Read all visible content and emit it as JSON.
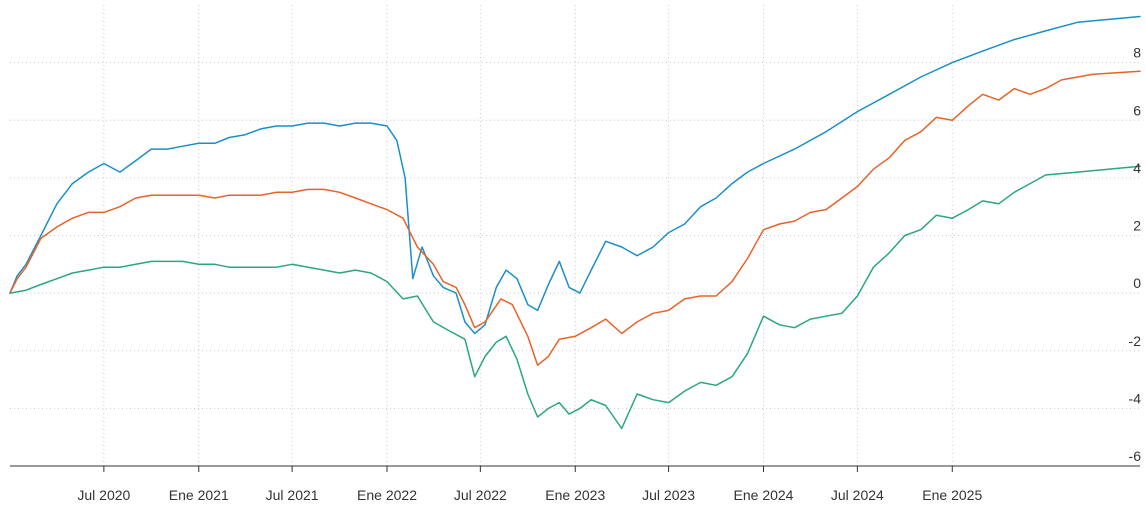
{
  "chart_data": {
    "type": "line",
    "grid": true,
    "legend": "none",
    "y_axis_position": "right",
    "xlim": [
      "2020-01-01",
      "2025-12-31"
    ],
    "ylim": [
      -6,
      10
    ],
    "x_ticks": [
      {
        "date": "2020-07-01",
        "label": "Jul 2020"
      },
      {
        "date": "2021-01-01",
        "label": "Ene 2021"
      },
      {
        "date": "2021-07-01",
        "label": "Jul 2021"
      },
      {
        "date": "2022-01-01",
        "label": "Ene 2022"
      },
      {
        "date": "2022-07-01",
        "label": "Jul 2022"
      },
      {
        "date": "2023-01-01",
        "label": "Ene 2023"
      },
      {
        "date": "2023-07-01",
        "label": "Jul 2023"
      },
      {
        "date": "2024-01-01",
        "label": "Ene 2024"
      },
      {
        "date": "2024-07-01",
        "label": "Jul 2024"
      },
      {
        "date": "2025-01-01",
        "label": "Ene 2025"
      }
    ],
    "y_ticks": [
      {
        "value": 8,
        "label": "8"
      },
      {
        "value": 6,
        "label": "6"
      },
      {
        "value": 4,
        "label": "4"
      },
      {
        "value": 2,
        "label": "2"
      },
      {
        "value": 0,
        "label": "0"
      },
      {
        "value": -2,
        "label": "-2"
      },
      {
        "value": -4,
        "label": "-4"
      },
      {
        "value": -6,
        "label": "-6"
      }
    ],
    "series": [
      {
        "color": "#1a8fc9",
        "points": [
          [
            "2020-01-01",
            0.0
          ],
          [
            "2020-01-15",
            0.6
          ],
          [
            "2020-02-01",
            1.0
          ],
          [
            "2020-03-01",
            2.0
          ],
          [
            "2020-04-01",
            3.1
          ],
          [
            "2020-05-01",
            3.8
          ],
          [
            "2020-06-01",
            4.2
          ],
          [
            "2020-07-01",
            4.5
          ],
          [
            "2020-08-01",
            4.2
          ],
          [
            "2020-09-01",
            4.6
          ],
          [
            "2020-10-01",
            5.0
          ],
          [
            "2020-11-01",
            5.0
          ],
          [
            "2020-12-01",
            5.1
          ],
          [
            "2021-01-01",
            5.2
          ],
          [
            "2021-02-01",
            5.2
          ],
          [
            "2021-03-01",
            5.4
          ],
          [
            "2021-04-01",
            5.5
          ],
          [
            "2021-05-01",
            5.7
          ],
          [
            "2021-06-01",
            5.8
          ],
          [
            "2021-07-01",
            5.8
          ],
          [
            "2021-08-01",
            5.9
          ],
          [
            "2021-09-01",
            5.9
          ],
          [
            "2021-10-01",
            5.8
          ],
          [
            "2021-11-01",
            5.9
          ],
          [
            "2021-12-01",
            5.9
          ],
          [
            "2022-01-01",
            5.8
          ],
          [
            "2022-01-20",
            5.3
          ],
          [
            "2022-02-05",
            4.0
          ],
          [
            "2022-02-20",
            0.5
          ],
          [
            "2022-03-10",
            1.6
          ],
          [
            "2022-04-01",
            0.6
          ],
          [
            "2022-04-20",
            0.2
          ],
          [
            "2022-05-15",
            0.0
          ],
          [
            "2022-06-01",
            -1.0
          ],
          [
            "2022-06-20",
            -1.4
          ],
          [
            "2022-07-10",
            -1.1
          ],
          [
            "2022-08-01",
            0.2
          ],
          [
            "2022-08-20",
            0.8
          ],
          [
            "2022-09-10",
            0.5
          ],
          [
            "2022-10-01",
            -0.4
          ],
          [
            "2022-10-20",
            -0.6
          ],
          [
            "2022-11-10",
            0.3
          ],
          [
            "2022-12-01",
            1.1
          ],
          [
            "2022-12-20",
            0.2
          ],
          [
            "2023-01-10",
            0.0
          ],
          [
            "2023-02-01",
            0.8
          ],
          [
            "2023-03-01",
            1.8
          ],
          [
            "2023-04-01",
            1.6
          ],
          [
            "2023-05-01",
            1.3
          ],
          [
            "2023-06-01",
            1.6
          ],
          [
            "2023-07-01",
            2.1
          ],
          [
            "2023-08-01",
            2.4
          ],
          [
            "2023-09-01",
            3.0
          ],
          [
            "2023-10-01",
            3.3
          ],
          [
            "2023-11-01",
            3.8
          ],
          [
            "2023-12-01",
            4.2
          ],
          [
            "2024-01-01",
            4.5
          ],
          [
            "2024-03-01",
            5.0
          ],
          [
            "2024-05-01",
            5.6
          ],
          [
            "2024-07-01",
            6.3
          ],
          [
            "2024-09-01",
            6.9
          ],
          [
            "2024-11-01",
            7.5
          ],
          [
            "2025-01-01",
            8.0
          ],
          [
            "2025-03-01",
            8.4
          ],
          [
            "2025-05-01",
            8.8
          ],
          [
            "2025-07-01",
            9.1
          ],
          [
            "2025-09-01",
            9.4
          ],
          [
            "2025-12-31",
            9.6
          ]
        ]
      },
      {
        "color": "#e8622a",
        "points": [
          [
            "2020-01-01",
            0.0
          ],
          [
            "2020-01-15",
            0.5
          ],
          [
            "2020-02-01",
            0.9
          ],
          [
            "2020-03-01",
            1.9
          ],
          [
            "2020-04-01",
            2.3
          ],
          [
            "2020-05-01",
            2.6
          ],
          [
            "2020-06-01",
            2.8
          ],
          [
            "2020-07-01",
            2.8
          ],
          [
            "2020-08-01",
            3.0
          ],
          [
            "2020-09-01",
            3.3
          ],
          [
            "2020-10-01",
            3.4
          ],
          [
            "2020-11-01",
            3.4
          ],
          [
            "2020-12-01",
            3.4
          ],
          [
            "2021-01-01",
            3.4
          ],
          [
            "2021-02-01",
            3.3
          ],
          [
            "2021-03-01",
            3.4
          ],
          [
            "2021-04-01",
            3.4
          ],
          [
            "2021-05-01",
            3.4
          ],
          [
            "2021-06-01",
            3.5
          ],
          [
            "2021-07-01",
            3.5
          ],
          [
            "2021-08-01",
            3.6
          ],
          [
            "2021-09-01",
            3.6
          ],
          [
            "2021-10-01",
            3.5
          ],
          [
            "2021-11-01",
            3.3
          ],
          [
            "2021-12-01",
            3.1
          ],
          [
            "2022-01-01",
            2.9
          ],
          [
            "2022-02-01",
            2.6
          ],
          [
            "2022-03-01",
            1.6
          ],
          [
            "2022-04-01",
            1.0
          ],
          [
            "2022-04-20",
            0.4
          ],
          [
            "2022-05-15",
            0.2
          ],
          [
            "2022-06-01",
            -0.4
          ],
          [
            "2022-06-20",
            -1.2
          ],
          [
            "2022-07-10",
            -1.0
          ],
          [
            "2022-08-10",
            -0.2
          ],
          [
            "2022-09-01",
            -0.4
          ],
          [
            "2022-10-01",
            -1.5
          ],
          [
            "2022-10-20",
            -2.5
          ],
          [
            "2022-11-10",
            -2.2
          ],
          [
            "2022-12-01",
            -1.6
          ],
          [
            "2023-01-01",
            -1.5
          ],
          [
            "2023-02-01",
            -1.2
          ],
          [
            "2023-03-01",
            -0.9
          ],
          [
            "2023-04-01",
            -1.4
          ],
          [
            "2023-05-01",
            -1.0
          ],
          [
            "2023-06-01",
            -0.7
          ],
          [
            "2023-07-01",
            -0.6
          ],
          [
            "2023-08-01",
            -0.2
          ],
          [
            "2023-09-01",
            -0.1
          ],
          [
            "2023-10-01",
            -0.1
          ],
          [
            "2023-11-01",
            0.4
          ],
          [
            "2023-12-01",
            1.2
          ],
          [
            "2024-01-01",
            2.2
          ],
          [
            "2024-02-01",
            2.4
          ],
          [
            "2024-03-01",
            2.5
          ],
          [
            "2024-04-01",
            2.8
          ],
          [
            "2024-05-01",
            2.9
          ],
          [
            "2024-06-01",
            3.3
          ],
          [
            "2024-07-01",
            3.7
          ],
          [
            "2024-08-01",
            4.3
          ],
          [
            "2024-09-01",
            4.7
          ],
          [
            "2024-10-01",
            5.3
          ],
          [
            "2024-11-01",
            5.6
          ],
          [
            "2024-12-01",
            6.1
          ],
          [
            "2025-01-01",
            6.0
          ],
          [
            "2025-02-01",
            6.5
          ],
          [
            "2025-03-01",
            6.9
          ],
          [
            "2025-04-01",
            6.7
          ],
          [
            "2025-05-01",
            7.1
          ],
          [
            "2025-06-01",
            6.9
          ],
          [
            "2025-07-01",
            7.1
          ],
          [
            "2025-08-01",
            7.4
          ],
          [
            "2025-10-01",
            7.6
          ],
          [
            "2025-12-31",
            7.7
          ]
        ]
      },
      {
        "color": "#2aa87a",
        "points": [
          [
            "2020-01-01",
            0.0
          ],
          [
            "2020-02-01",
            0.1
          ],
          [
            "2020-03-01",
            0.3
          ],
          [
            "2020-04-01",
            0.5
          ],
          [
            "2020-05-01",
            0.7
          ],
          [
            "2020-06-01",
            0.8
          ],
          [
            "2020-07-01",
            0.9
          ],
          [
            "2020-08-01",
            0.9
          ],
          [
            "2020-09-01",
            1.0
          ],
          [
            "2020-10-01",
            1.1
          ],
          [
            "2020-11-01",
            1.1
          ],
          [
            "2020-12-01",
            1.1
          ],
          [
            "2021-01-01",
            1.0
          ],
          [
            "2021-02-01",
            1.0
          ],
          [
            "2021-03-01",
            0.9
          ],
          [
            "2021-04-01",
            0.9
          ],
          [
            "2021-05-01",
            0.9
          ],
          [
            "2021-06-01",
            0.9
          ],
          [
            "2021-07-01",
            1.0
          ],
          [
            "2021-08-01",
            0.9
          ],
          [
            "2021-09-01",
            0.8
          ],
          [
            "2021-10-01",
            0.7
          ],
          [
            "2021-11-01",
            0.8
          ],
          [
            "2021-12-01",
            0.7
          ],
          [
            "2022-01-01",
            0.4
          ],
          [
            "2022-02-01",
            -0.2
          ],
          [
            "2022-03-01",
            -0.1
          ],
          [
            "2022-04-01",
            -1.0
          ],
          [
            "2022-05-01",
            -1.3
          ],
          [
            "2022-06-01",
            -1.6
          ],
          [
            "2022-06-20",
            -2.9
          ],
          [
            "2022-07-10",
            -2.2
          ],
          [
            "2022-08-01",
            -1.7
          ],
          [
            "2022-08-20",
            -1.5
          ],
          [
            "2022-09-10",
            -2.3
          ],
          [
            "2022-10-01",
            -3.5
          ],
          [
            "2022-10-20",
            -4.3
          ],
          [
            "2022-11-10",
            -4.0
          ],
          [
            "2022-12-01",
            -3.8
          ],
          [
            "2022-12-20",
            -4.2
          ],
          [
            "2023-01-10",
            -4.0
          ],
          [
            "2023-02-01",
            -3.7
          ],
          [
            "2023-03-01",
            -3.9
          ],
          [
            "2023-04-01",
            -4.7
          ],
          [
            "2023-05-01",
            -3.5
          ],
          [
            "2023-06-01",
            -3.7
          ],
          [
            "2023-07-01",
            -3.8
          ],
          [
            "2023-08-01",
            -3.4
          ],
          [
            "2023-09-01",
            -3.1
          ],
          [
            "2023-10-01",
            -3.2
          ],
          [
            "2023-11-01",
            -2.9
          ],
          [
            "2023-12-01",
            -2.1
          ],
          [
            "2024-01-01",
            -0.8
          ],
          [
            "2024-02-01",
            -1.1
          ],
          [
            "2024-03-01",
            -1.2
          ],
          [
            "2024-04-01",
            -0.9
          ],
          [
            "2024-05-01",
            -0.8
          ],
          [
            "2024-06-01",
            -0.7
          ],
          [
            "2024-07-01",
            -0.1
          ],
          [
            "2024-08-01",
            0.9
          ],
          [
            "2024-09-01",
            1.4
          ],
          [
            "2024-10-01",
            2.0
          ],
          [
            "2024-11-01",
            2.2
          ],
          [
            "2024-12-01",
            2.7
          ],
          [
            "2025-01-01",
            2.6
          ],
          [
            "2025-02-01",
            2.9
          ],
          [
            "2025-03-01",
            3.2
          ],
          [
            "2025-04-01",
            3.1
          ],
          [
            "2025-05-01",
            3.5
          ],
          [
            "2025-06-01",
            3.8
          ],
          [
            "2025-07-01",
            4.1
          ],
          [
            "2025-09-01",
            4.2
          ],
          [
            "2025-12-31",
            4.4
          ]
        ]
      }
    ]
  }
}
